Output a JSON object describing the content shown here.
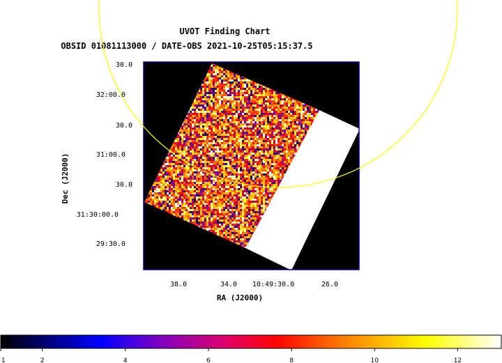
{
  "chart_data": {
    "type": "heatmap",
    "title": "UVOT Finding Chart",
    "subtitle": "OBSID 01081113000 / DATE-OBS 2021-10-25T05:15:37.5",
    "xlabel": "RA (J2000)",
    "ylabel": "Dec (J2000)",
    "x_ticks": [
      "38.0",
      "34.0",
      "10:49:30.0",
      "26.0"
    ],
    "y_ticks": [
      "30.0",
      "32:00.0",
      "30.0",
      "31:00.0",
      "30.0",
      "31:30:00.0",
      "29:30.0"
    ],
    "colorbar": {
      "ticks": [
        "1",
        "2",
        "4",
        "6",
        "8",
        "10",
        "12"
      ],
      "colors": [
        "#000000",
        "#0000ff",
        "#8000c0",
        "#ff0000",
        "#ffa000",
        "#ffff00",
        "#ffffff"
      ]
    },
    "image_colors": {
      "background": "#000000",
      "frame": "#00008b",
      "saturated": "#ffffff",
      "marker": "#ffff00"
    }
  }
}
